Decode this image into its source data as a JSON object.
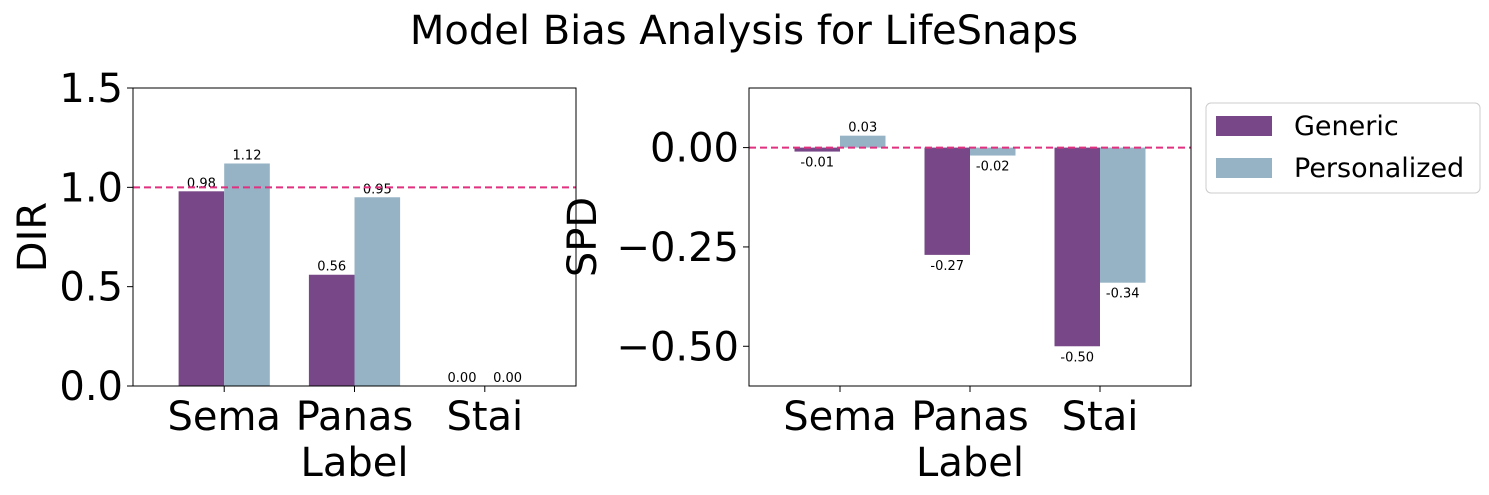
{
  "title": "Model Bias Analysis for LifeSnaps",
  "colors": {
    "generic": "#774787",
    "personalized": "#95b3c5",
    "reference": "#e0307f"
  },
  "legend": {
    "position": "right",
    "items": [
      "Generic",
      "Personalized"
    ]
  },
  "chart_data": [
    {
      "type": "bar",
      "categories": [
        "Sema",
        "Panas",
        "Stai"
      ],
      "series": [
        {
          "name": "Generic",
          "values": [
            0.98,
            0.56,
            0.0
          ]
        },
        {
          "name": "Personalized",
          "values": [
            1.12,
            0.95,
            0.0
          ]
        }
      ],
      "value_labels": [
        [
          "0.98",
          "0.56",
          "0.00"
        ],
        [
          "1.12",
          "0.95",
          "0.00"
        ]
      ],
      "xlabel": "Label",
      "ylabel": "DIR",
      "ylim": [
        0,
        1.5
      ],
      "yticks": [
        0.0,
        0.5,
        1.0,
        1.5
      ],
      "ytick_labels": [
        "0.0",
        "0.5",
        "1.0",
        "1.5"
      ],
      "reference_line": 1.0,
      "grid": false
    },
    {
      "type": "bar",
      "categories": [
        "Sema",
        "Panas",
        "Stai"
      ],
      "series": [
        {
          "name": "Generic",
          "values": [
            -0.01,
            -0.27,
            -0.5
          ]
        },
        {
          "name": "Personalized",
          "values": [
            0.03,
            -0.02,
            -0.34
          ]
        }
      ],
      "value_labels": [
        [
          "-0.01",
          "-0.27",
          "-0.50"
        ],
        [
          "0.03",
          "-0.02",
          "-0.34"
        ]
      ],
      "xlabel": "Label",
      "ylabel": "SPD",
      "ylim": [
        -0.6,
        0.15
      ],
      "yticks": [
        0.0,
        -0.25,
        -0.5
      ],
      "ytick_labels": [
        "0.00",
        "−0.25",
        "−0.50"
      ],
      "reference_line": 0.0,
      "grid": false
    }
  ]
}
